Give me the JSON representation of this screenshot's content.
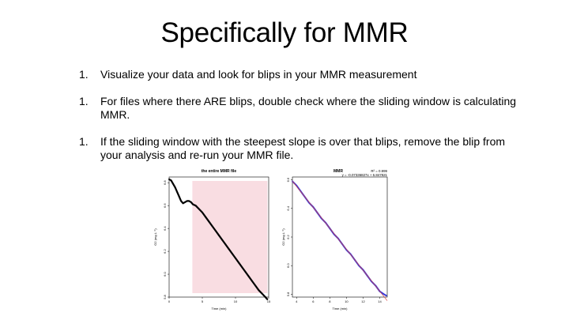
{
  "slide": {
    "title": "Specifically for MMR",
    "bullets": [
      {
        "number": "1.",
        "text": "Visualize your data and look for blips in your MMR measurement"
      },
      {
        "number": "1.",
        "text": "For files where there ARE blips, double check where the sliding window is calculating MMR."
      },
      {
        "number": "1.",
        "text": "If the sliding window with the steepest slope is over that blips, remove the blip from your analysis and re-run your MMR file."
      }
    ]
  },
  "colors": {
    "raw_series": "#000000",
    "window_shading": "#f9dde2",
    "fit_series": "#3a3ad8",
    "fit_line": "#d84040"
  },
  "chart_data": [
    {
      "type": "scatter",
      "title": "the entire MMR file",
      "xlabel": "Time (min)",
      "ylabel": "O2 (mg L⁻¹)",
      "xlim": [
        0,
        15
      ],
      "ylim": [
        5.8,
        6.85
      ],
      "xticks": [
        0,
        5,
        10,
        15
      ],
      "yticks": [
        5.8,
        6.0,
        6.2,
        6.4,
        6.6,
        6.8
      ],
      "grid": false,
      "highlight_window": {
        "x_start": 3.5,
        "x_end": 14.8
      },
      "points": [
        [
          0.0,
          6.83
        ],
        [
          0.3,
          6.82
        ],
        [
          0.6,
          6.79
        ],
        [
          0.9,
          6.76
        ],
        [
          1.2,
          6.72
        ],
        [
          1.5,
          6.68
        ],
        [
          1.8,
          6.64
        ],
        [
          2.1,
          6.62
        ],
        [
          2.4,
          6.63
        ],
        [
          2.7,
          6.64
        ],
        [
          3.0,
          6.64
        ],
        [
          3.3,
          6.63
        ],
        [
          3.6,
          6.61
        ],
        [
          4.0,
          6.6
        ],
        [
          4.5,
          6.57
        ],
        [
          5.0,
          6.54
        ],
        [
          5.5,
          6.5
        ],
        [
          6.0,
          6.46
        ],
        [
          6.5,
          6.42
        ],
        [
          7.0,
          6.38
        ],
        [
          7.5,
          6.34
        ],
        [
          8.0,
          6.3
        ],
        [
          8.5,
          6.26
        ],
        [
          9.0,
          6.22
        ],
        [
          9.5,
          6.18
        ],
        [
          10.0,
          6.14
        ],
        [
          10.5,
          6.1
        ],
        [
          11.0,
          6.06
        ],
        [
          11.5,
          6.02
        ],
        [
          12.0,
          5.98
        ],
        [
          12.5,
          5.94
        ],
        [
          13.0,
          5.9
        ],
        [
          13.5,
          5.86
        ],
        [
          14.0,
          5.83
        ],
        [
          14.5,
          5.8
        ],
        [
          14.8,
          5.78
        ]
      ]
    },
    {
      "type": "scatter",
      "title": "MMR",
      "xlabel": "Time (min)",
      "ylabel": "O2 (mg L⁻¹)",
      "xlim": [
        3.5,
        14.9
      ],
      "ylim": [
        5.78,
        6.62
      ],
      "xticks": [
        4,
        6,
        8,
        10,
        12,
        14
      ],
      "yticks": [
        5.8,
        6.0,
        6.2,
        6.4,
        6.6
      ],
      "grid": false,
      "annotations": [
        "R² = 0.999",
        "y = -0.07336827x + 6.847821"
      ],
      "fit": {
        "slope": -0.07336827,
        "intercept": 6.847821
      },
      "points": [
        [
          3.5,
          6.59
        ],
        [
          4.0,
          6.56
        ],
        [
          4.5,
          6.52
        ],
        [
          5.0,
          6.48
        ],
        [
          5.5,
          6.44
        ],
        [
          6.0,
          6.41
        ],
        [
          6.5,
          6.37
        ],
        [
          7.0,
          6.33
        ],
        [
          7.5,
          6.3
        ],
        [
          8.0,
          6.26
        ],
        [
          8.5,
          6.22
        ],
        [
          9.0,
          6.19
        ],
        [
          9.5,
          6.15
        ],
        [
          10.0,
          6.11
        ],
        [
          10.5,
          6.08
        ],
        [
          11.0,
          6.04
        ],
        [
          11.5,
          6.0
        ],
        [
          12.0,
          5.97
        ],
        [
          12.5,
          5.93
        ],
        [
          13.0,
          5.89
        ],
        [
          13.5,
          5.86
        ],
        [
          14.0,
          5.82
        ],
        [
          14.5,
          5.8
        ],
        [
          14.8,
          5.79
        ]
      ]
    }
  ]
}
